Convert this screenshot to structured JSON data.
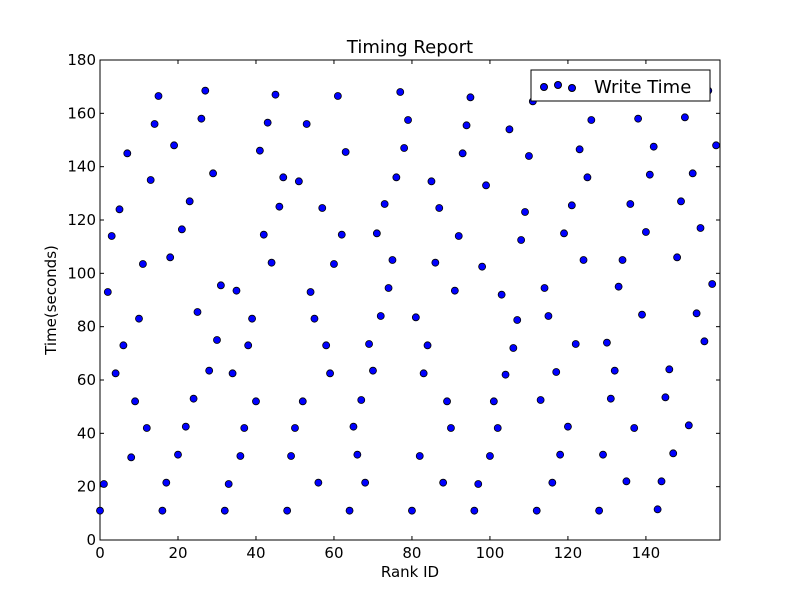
{
  "chart_data": {
    "type": "scatter",
    "title": "Timing Report",
    "xlabel": "Rank ID",
    "ylabel": "Time(seconds)",
    "xlim": [
      0,
      159
    ],
    "ylim": [
      0,
      180
    ],
    "x_ticks": [
      0,
      20,
      40,
      60,
      80,
      100,
      120,
      140
    ],
    "y_ticks": [
      0,
      20,
      40,
      60,
      80,
      100,
      120,
      140,
      160,
      180
    ],
    "grid": false,
    "legend_position": "top-right",
    "marker_color": "#0000ff",
    "series": [
      {
        "name": "Write Time",
        "points": [
          [
            0,
            11.0
          ],
          [
            1,
            21.0
          ],
          [
            2,
            93.0
          ],
          [
            3,
            114.0
          ],
          [
            4,
            62.5
          ],
          [
            5,
            124.0
          ],
          [
            6,
            73.0
          ],
          [
            7,
            145.0
          ],
          [
            8,
            31.0
          ],
          [
            9,
            52.0
          ],
          [
            10,
            83.0
          ],
          [
            11,
            103.5
          ],
          [
            12,
            42.0
          ],
          [
            13,
            135.0
          ],
          [
            14,
            156.0
          ],
          [
            15,
            166.5
          ],
          [
            16,
            11.0
          ],
          [
            17,
            21.5
          ],
          [
            18,
            106.0
          ],
          [
            19,
            148.0
          ],
          [
            20,
            32.0
          ],
          [
            21,
            116.5
          ],
          [
            22,
            42.5
          ],
          [
            23,
            127.0
          ],
          [
            24,
            53.0
          ],
          [
            25,
            85.5
          ],
          [
            26,
            158.0
          ],
          [
            27,
            168.5
          ],
          [
            28,
            63.5
          ],
          [
            29,
            137.5
          ],
          [
            30,
            75.0
          ],
          [
            31,
            95.5
          ],
          [
            32,
            11.0
          ],
          [
            33,
            21.0
          ],
          [
            34,
            62.5
          ],
          [
            35,
            93.5
          ],
          [
            36,
            31.5
          ],
          [
            37,
            42.0
          ],
          [
            38,
            73.0
          ],
          [
            39,
            83.0
          ],
          [
            40,
            52.0
          ],
          [
            41,
            146.0
          ],
          [
            42,
            114.5
          ],
          [
            43,
            156.5
          ],
          [
            44,
            104.0
          ],
          [
            45,
            167.0
          ],
          [
            46,
            125.0
          ],
          [
            47,
            136.0
          ],
          [
            48,
            11.0
          ],
          [
            49,
            31.5
          ],
          [
            50,
            42.0
          ],
          [
            51,
            134.5
          ],
          [
            52,
            52.0
          ],
          [
            53,
            156.0
          ],
          [
            54,
            93.0
          ],
          [
            55,
            83.0
          ],
          [
            56,
            21.5
          ],
          [
            57,
            124.5
          ],
          [
            58,
            73.0
          ],
          [
            59,
            62.5
          ],
          [
            60,
            103.5
          ],
          [
            61,
            166.5
          ],
          [
            62,
            114.5
          ],
          [
            63,
            145.5
          ],
          [
            64,
            11.0
          ],
          [
            65,
            42.5
          ],
          [
            66,
            32.0
          ],
          [
            67,
            52.5
          ],
          [
            68,
            21.5
          ],
          [
            69,
            73.5
          ],
          [
            70,
            63.5
          ],
          [
            71,
            115.0
          ],
          [
            72,
            84.0
          ],
          [
            73,
            126.0
          ],
          [
            74,
            94.5
          ],
          [
            75,
            105.0
          ],
          [
            76,
            136.0
          ],
          [
            77,
            168.0
          ],
          [
            78,
            147.0
          ],
          [
            79,
            157.5
          ],
          [
            80,
            11.0
          ],
          [
            81,
            83.5
          ],
          [
            82,
            31.5
          ],
          [
            83,
            62.5
          ],
          [
            84,
            73.0
          ],
          [
            85,
            134.5
          ],
          [
            86,
            104.0
          ],
          [
            87,
            124.5
          ],
          [
            88,
            21.5
          ],
          [
            89,
            52.0
          ],
          [
            90,
            42.0
          ],
          [
            91,
            93.5
          ],
          [
            92,
            114.0
          ],
          [
            93,
            145.0
          ],
          [
            94,
            155.5
          ],
          [
            95,
            166.0
          ],
          [
            96,
            11.0
          ],
          [
            97,
            21.0
          ],
          [
            98,
            102.5
          ],
          [
            99,
            133.0
          ],
          [
            100,
            31.5
          ],
          [
            101,
            52.0
          ],
          [
            102,
            42.0
          ],
          [
            103,
            92.0
          ],
          [
            104,
            62.0
          ],
          [
            105,
            154.0
          ],
          [
            106,
            72.0
          ],
          [
            107,
            82.5
          ],
          [
            108,
            112.5
          ],
          [
            109,
            123.0
          ],
          [
            110,
            144.0
          ],
          [
            111,
            164.5
          ],
          [
            112,
            11.0
          ],
          [
            113,
            52.5
          ],
          [
            114,
            94.5
          ],
          [
            115,
            84.0
          ],
          [
            116,
            21.5
          ],
          [
            117,
            63.0
          ],
          [
            118,
            32.0
          ],
          [
            119,
            115.0
          ],
          [
            120,
            42.5
          ],
          [
            121,
            125.5
          ],
          [
            122,
            73.5
          ],
          [
            123,
            146.5
          ],
          [
            124,
            105.0
          ],
          [
            125,
            136.0
          ],
          [
            126,
            157.5
          ],
          [
            127,
            167.5
          ],
          [
            128,
            11.0
          ],
          [
            129,
            32.0
          ],
          [
            130,
            74.0
          ],
          [
            131,
            53.0
          ],
          [
            132,
            63.5
          ],
          [
            133,
            95.0
          ],
          [
            134,
            105.0
          ],
          [
            135,
            22.0
          ],
          [
            136,
            126.0
          ],
          [
            137,
            42.0
          ],
          [
            138,
            158.0
          ],
          [
            139,
            84.5
          ],
          [
            140,
            115.5
          ],
          [
            141,
            137.0
          ],
          [
            142,
            147.5
          ],
          [
            143,
            11.5
          ],
          [
            144,
            22.0
          ],
          [
            145,
            53.5
          ],
          [
            146,
            64.0
          ],
          [
            147,
            32.5
          ],
          [
            148,
            106.0
          ],
          [
            149,
            127.0
          ],
          [
            150,
            158.5
          ],
          [
            151,
            43.0
          ],
          [
            152,
            137.5
          ],
          [
            153,
            85.0
          ],
          [
            154,
            117.0
          ],
          [
            155,
            74.5
          ],
          [
            156,
            168.5
          ],
          [
            157,
            96.0
          ],
          [
            158,
            148.0
          ]
        ]
      }
    ]
  }
}
